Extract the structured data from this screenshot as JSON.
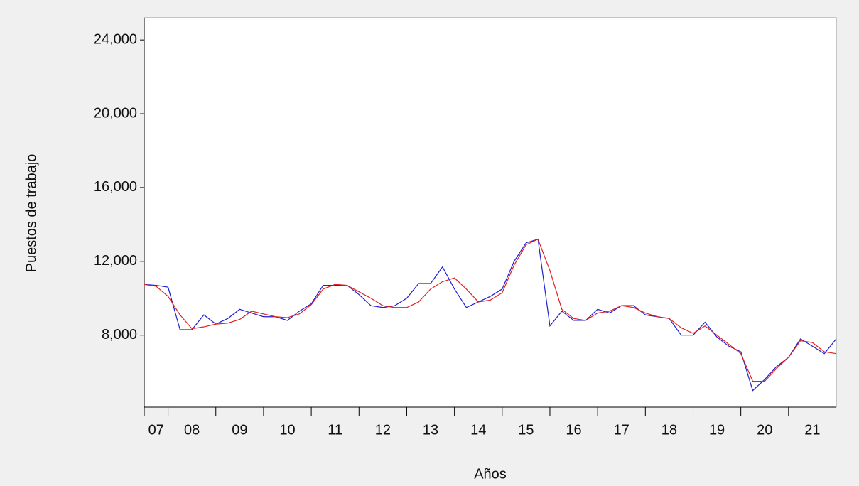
{
  "chart_data": {
    "type": "line",
    "x_label": "Años",
    "y_label": "Puestos de trabajo",
    "x": [
      2007.5,
      2007.75,
      2008,
      2008.25,
      2008.5,
      2008.75,
      2009,
      2009.25,
      2009.5,
      2009.75,
      2010,
      2010.25,
      2010.5,
      2010.75,
      2011,
      2011.25,
      2011.5,
      2011.75,
      2012,
      2012.25,
      2012.5,
      2012.75,
      2013,
      2013.25,
      2013.5,
      2013.75,
      2014,
      2014.25,
      2014.5,
      2014.75,
      2015,
      2015.25,
      2015.5,
      2015.75,
      2016,
      2016.25,
      2016.5,
      2016.75,
      2017,
      2017.25,
      2017.5,
      2017.75,
      2018,
      2018.25,
      2018.5,
      2018.75,
      2019,
      2019.25,
      2019.5,
      2019.75,
      2020,
      2020.25,
      2020.5,
      2020.75,
      2021,
      2021.25,
      2021.5,
      2021.75,
      2022
    ],
    "series": [
      {
        "color": "#1f1fd0",
        "values": [
          10750,
          10700,
          10600,
          8300,
          8300,
          9100,
          8600,
          8900,
          9400,
          9200,
          9000,
          9000,
          8800,
          9300,
          9700,
          10700,
          10700,
          10700,
          10200,
          9600,
          9500,
          9600,
          10000,
          10800,
          10800,
          11700,
          10500,
          9500,
          9800,
          10100,
          10500,
          12000,
          13000,
          13200,
          8500,
          9300,
          8800,
          8800,
          9400,
          9200,
          9600,
          9600,
          9100,
          9000,
          8900,
          8000,
          8000,
          8700,
          7900,
          7400,
          7100,
          5000,
          5600,
          6300,
          6800,
          7800,
          7400,
          7000,
          7800
        ]
      },
      {
        "color": "#e02020",
        "values": [
          10750,
          10650,
          10100,
          9100,
          8350,
          8450,
          8600,
          8650,
          8850,
          9300,
          9150,
          9000,
          8950,
          9150,
          9650,
          10500,
          10750,
          10700,
          10350,
          10000,
          9600,
          9500,
          9500,
          9800,
          10500,
          10900,
          11100,
          10500,
          9800,
          9900,
          10300,
          11800,
          12900,
          13200,
          11500,
          9400,
          8900,
          8800,
          9200,
          9300,
          9600,
          9500,
          9200,
          9000,
          8900,
          8400,
          8100,
          8500,
          8000,
          7500,
          7000,
          5500,
          5500,
          6200,
          6800,
          7700,
          7600,
          7100,
          7000
        ]
      }
    ],
    "xlim": [
      2007.5,
      2022
    ],
    "xticks": [
      {
        "value": 2007,
        "label": "07"
      },
      {
        "value": 2008,
        "label": "08"
      },
      {
        "value": 2009,
        "label": "09"
      },
      {
        "value": 2010,
        "label": "10"
      },
      {
        "value": 2011,
        "label": "11"
      },
      {
        "value": 2012,
        "label": "12"
      },
      {
        "value": 2013,
        "label": "13"
      },
      {
        "value": 2014,
        "label": "14"
      },
      {
        "value": 2015,
        "label": "15"
      },
      {
        "value": 2016,
        "label": "16"
      },
      {
        "value": 2017,
        "label": "17"
      },
      {
        "value": 2018,
        "label": "18"
      },
      {
        "value": 2019,
        "label": "19"
      },
      {
        "value": 2020,
        "label": "20"
      },
      {
        "value": 2021,
        "label": "21"
      }
    ],
    "ylim": [
      4100,
      25200
    ],
    "yticks": [
      {
        "value": 8000,
        "label": "8,000"
      },
      {
        "value": 12000,
        "label": "12,000"
      },
      {
        "value": 16000,
        "label": "16,000"
      },
      {
        "value": 20000,
        "label": "20,000"
      },
      {
        "value": 24000,
        "label": "24,000"
      }
    ]
  }
}
